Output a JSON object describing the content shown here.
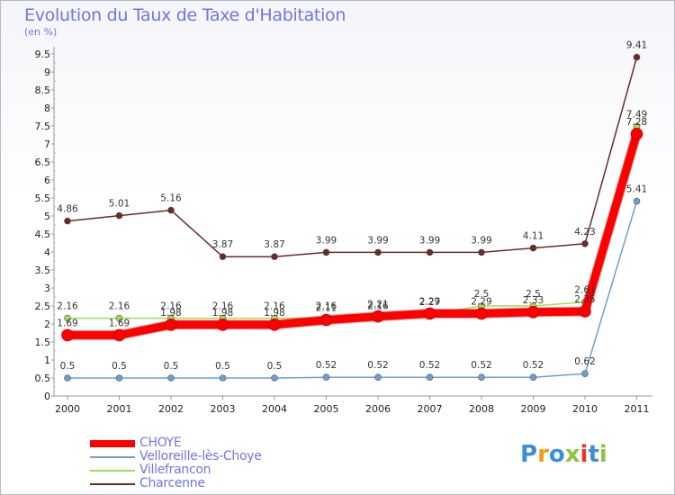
{
  "title": "Evolution du Taux de Taxe d'Habitation",
  "unit": "(en %)",
  "logo": "Proxiti",
  "chart_data": {
    "type": "line",
    "x": [
      "2000",
      "2001",
      "2002",
      "2003",
      "2004",
      "2005",
      "2006",
      "2007",
      "2008",
      "2009",
      "2010",
      "2011"
    ],
    "ylim": [
      0,
      9.5
    ],
    "y_ticks": [
      "0",
      "0.5",
      "1",
      "1.5",
      "2",
      "2.5",
      "3",
      "3.5",
      "4",
      "4.5",
      "5",
      "5.5",
      "6",
      "6.5",
      "7",
      "7.5",
      "8",
      "8.5",
      "9",
      "9.5"
    ],
    "grid": false,
    "legend_position": "bottom-left",
    "series": [
      {
        "name": "CHOYE",
        "color": "#ff0000",
        "width": 9,
        "values": [
          1.69,
          1.69,
          1.98,
          1.98,
          1.98,
          2.11,
          2.21,
          2.29,
          2.29,
          2.33,
          2.35,
          7.28
        ],
        "labels": [
          "1.69",
          "1.69",
          "1.98",
          "1.98",
          "1.98",
          "2.11",
          "2.21",
          "2.29",
          "2.29",
          "2.33",
          "2.35",
          "7.28"
        ]
      },
      {
        "name": "Velloreille-lès-Choye",
        "color": "#6c9fd0",
        "width": 1.5,
        "values": [
          0.5,
          0.5,
          0.5,
          0.5,
          0.5,
          0.52,
          0.52,
          0.52,
          0.52,
          0.52,
          0.62,
          5.41
        ],
        "labels": [
          "0.5",
          "0.5",
          "0.5",
          "0.5",
          "0.5",
          "0.52",
          "0.52",
          "0.52",
          "0.52",
          "0.52",
          "0.62",
          "5.41"
        ]
      },
      {
        "name": "Villefrancon",
        "color": "#9fdc5a",
        "width": 1.5,
        "values": [
          2.16,
          2.16,
          2.16,
          2.16,
          2.16,
          2.16,
          2.16,
          2.27,
          2.5,
          2.5,
          2.61,
          7.49
        ],
        "labels": [
          "2.16",
          "2.16",
          "2.16",
          "2.16",
          "2.16",
          "2.16",
          "2.16",
          "2.27",
          "2.5",
          "2.5",
          "2.61",
          "7.49"
        ]
      },
      {
        "name": "Charcenne",
        "color": "#6b2a2a",
        "width": 1.5,
        "values": [
          4.86,
          5.01,
          5.16,
          3.87,
          3.87,
          3.99,
          3.99,
          3.99,
          3.99,
          4.11,
          4.23,
          9.41
        ],
        "labels": [
          "4.86",
          "5.01",
          "5.16",
          "3.87",
          "3.87",
          "3.99",
          "3.99",
          "3.99",
          "3.99",
          "4.11",
          "4.23",
          "9.41"
        ]
      }
    ]
  }
}
